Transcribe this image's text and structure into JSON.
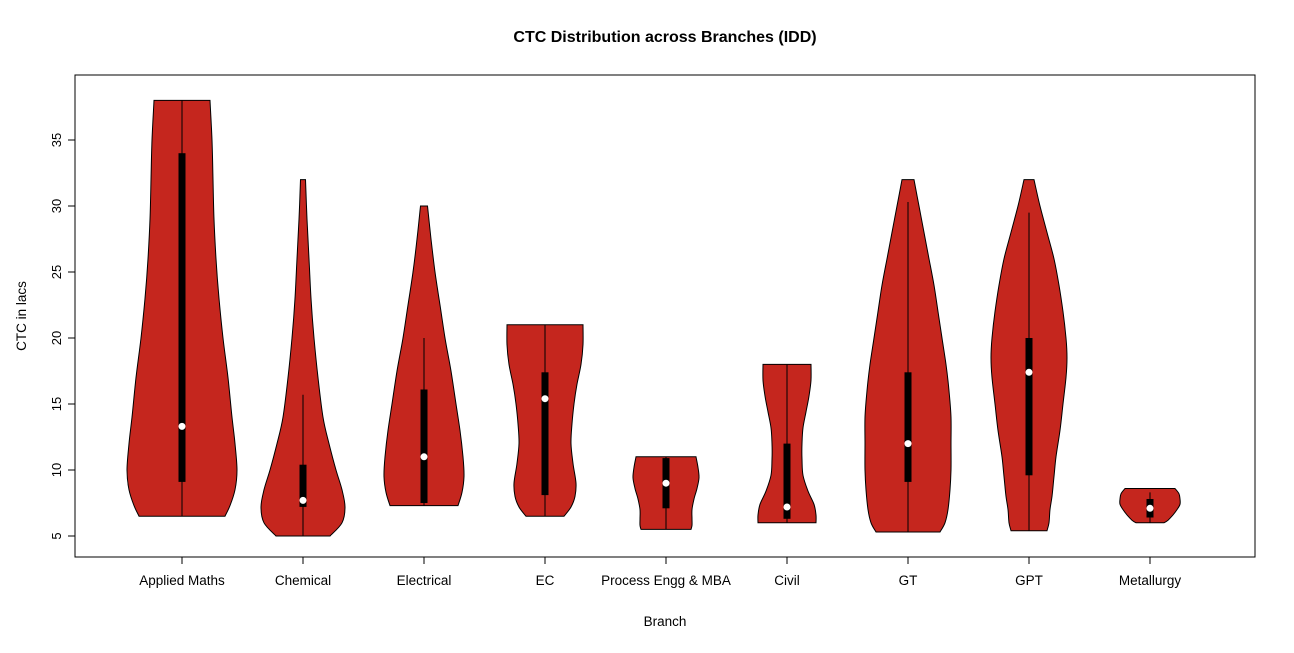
{
  "colors": {
    "background": "#FFFFFF",
    "violin_fill": "#C5261E",
    "violin_stroke": "#000000",
    "box_color": "#000000",
    "whisker_color": "#000000",
    "median_dot": "#FFFFFF",
    "axis_color": "#000000"
  },
  "chart_data": {
    "type": "violin",
    "title": "CTC Distribution across Branches (IDD)",
    "xlabel": "Branch",
    "ylabel": "CTC in lacs",
    "ylim": [
      3.8,
      39.6
    ],
    "y_ticks": [
      5,
      10,
      15,
      20,
      25,
      30,
      35
    ],
    "grid": false,
    "categories": [
      "Applied Maths",
      "Chemical",
      "Electrical",
      "EC",
      "Process Engg & MBA",
      "Civil",
      "GT",
      "GPT",
      "Metallurgy"
    ],
    "violins": [
      {
        "label": "Applied Maths",
        "min": 6.5,
        "max": 38,
        "q1": 9.1,
        "q3": 34,
        "median": 13.3,
        "whisker_low": 6.5,
        "whisker_high": 38,
        "profile": [
          [
            38,
            28
          ],
          [
            35,
            30
          ],
          [
            32,
            31
          ],
          [
            29,
            32
          ],
          [
            26,
            34
          ],
          [
            23,
            37
          ],
          [
            20,
            41
          ],
          [
            17,
            46
          ],
          [
            14,
            50
          ],
          [
            12,
            53
          ],
          [
            10,
            55
          ],
          [
            8.5,
            53
          ],
          [
            7.3,
            48
          ],
          [
            6.5,
            43
          ]
        ]
      },
      {
        "label": "Chemical",
        "min": 5,
        "max": 32,
        "q1": 7.2,
        "q3": 10.4,
        "median": 7.7,
        "whisker_low": 5,
        "whisker_high": 15.7,
        "profile": [
          [
            32,
            2.5
          ],
          [
            29,
            4
          ],
          [
            26,
            6
          ],
          [
            23,
            8
          ],
          [
            20,
            11
          ],
          [
            17,
            15
          ],
          [
            14,
            20
          ],
          [
            12,
            26
          ],
          [
            10,
            33
          ],
          [
            8.5,
            39
          ],
          [
            7.2,
            42
          ],
          [
            6,
            39
          ],
          [
            5,
            27
          ]
        ]
      },
      {
        "label": "Electrical",
        "min": 7.3,
        "max": 30,
        "q1": 7.5,
        "q3": 16.1,
        "median": 11,
        "whisker_low": 7.3,
        "whisker_high": 20,
        "profile": [
          [
            30,
            3.5
          ],
          [
            27.5,
            7
          ],
          [
            25,
            11
          ],
          [
            22.5,
            16
          ],
          [
            20,
            21
          ],
          [
            17.5,
            27
          ],
          [
            15,
            32
          ],
          [
            13,
            36
          ],
          [
            11,
            39
          ],
          [
            9.5,
            40
          ],
          [
            8.3,
            38
          ],
          [
            7.3,
            34
          ]
        ]
      },
      {
        "label": "EC",
        "min": 6.5,
        "max": 21,
        "q1": 8.1,
        "q3": 17.4,
        "median": 15.4,
        "whisker_low": 6.5,
        "whisker_high": 21,
        "profile": [
          [
            21,
            38
          ],
          [
            19.5,
            38
          ],
          [
            18,
            36
          ],
          [
            16.5,
            32
          ],
          [
            15,
            29
          ],
          [
            13.5,
            27
          ],
          [
            12,
            26
          ],
          [
            10.5,
            28
          ],
          [
            9,
            31
          ],
          [
            8,
            30
          ],
          [
            7.2,
            26
          ],
          [
            6.5,
            19
          ]
        ]
      },
      {
        "label": "Process Engg & MBA",
        "min": 5.5,
        "max": 11,
        "q1": 7.1,
        "q3": 10.9,
        "median": 9,
        "whisker_low": 5.5,
        "whisker_high": 11,
        "profile": [
          [
            11,
            30
          ],
          [
            10.2,
            32
          ],
          [
            9.4,
            33
          ],
          [
            8.6,
            31
          ],
          [
            7.8,
            28
          ],
          [
            7,
            26
          ],
          [
            6.3,
            26
          ],
          [
            5.8,
            26
          ],
          [
            5.5,
            25
          ]
        ]
      },
      {
        "label": "Civil",
        "min": 6,
        "max": 18,
        "q1": 6.3,
        "q3": 12,
        "median": 7.2,
        "whisker_low": 6,
        "whisker_high": 18,
        "profile": [
          [
            18,
            24
          ],
          [
            16.8,
            24
          ],
          [
            15.6,
            22
          ],
          [
            14.4,
            19
          ],
          [
            13.2,
            16
          ],
          [
            12,
            15
          ],
          [
            10.8,
            15
          ],
          [
            9.6,
            16
          ],
          [
            8.4,
            21
          ],
          [
            7.4,
            27
          ],
          [
            6.6,
            29
          ],
          [
            6,
            29
          ]
        ]
      },
      {
        "label": "GT",
        "min": 5.3,
        "max": 32,
        "q1": 9.1,
        "q3": 17.4,
        "median": 12,
        "whisker_low": 5.3,
        "whisker_high": 30.3,
        "profile": [
          [
            32,
            6
          ],
          [
            30,
            11
          ],
          [
            28,
            16
          ],
          [
            26,
            21
          ],
          [
            24,
            26
          ],
          [
            22,
            30
          ],
          [
            20,
            34
          ],
          [
            18,
            38
          ],
          [
            16,
            41
          ],
          [
            14,
            43
          ],
          [
            12,
            43
          ],
          [
            10,
            43
          ],
          [
            8.5,
            42
          ],
          [
            7,
            40
          ],
          [
            6,
            37
          ],
          [
            5.3,
            32
          ]
        ]
      },
      {
        "label": "GPT",
        "min": 5.4,
        "max": 32,
        "q1": 9.6,
        "q3": 20,
        "median": 17.4,
        "whisker_low": 5.4,
        "whisker_high": 29.5,
        "profile": [
          [
            32,
            5
          ],
          [
            30,
            11
          ],
          [
            28,
            18
          ],
          [
            26,
            25
          ],
          [
            24,
            30
          ],
          [
            22,
            34
          ],
          [
            20,
            37
          ],
          [
            18.5,
            38
          ],
          [
            17,
            37
          ],
          [
            15,
            34
          ],
          [
            13,
            31
          ],
          [
            11,
            27
          ],
          [
            9.5,
            25
          ],
          [
            8,
            23
          ],
          [
            7,
            21
          ],
          [
            6,
            20
          ],
          [
            5.4,
            18
          ]
        ]
      },
      {
        "label": "Metallurgy",
        "min": 6,
        "max": 8.6,
        "q1": 6.4,
        "q3": 7.8,
        "median": 7.1,
        "whisker_low": 6,
        "whisker_high": 8.3,
        "profile": [
          [
            8.6,
            25
          ],
          [
            8.2,
            29
          ],
          [
            7.8,
            30
          ],
          [
            7.4,
            30
          ],
          [
            7,
            27
          ],
          [
            6.6,
            23
          ],
          [
            6.2,
            18
          ],
          [
            6,
            14
          ]
        ]
      }
    ]
  }
}
